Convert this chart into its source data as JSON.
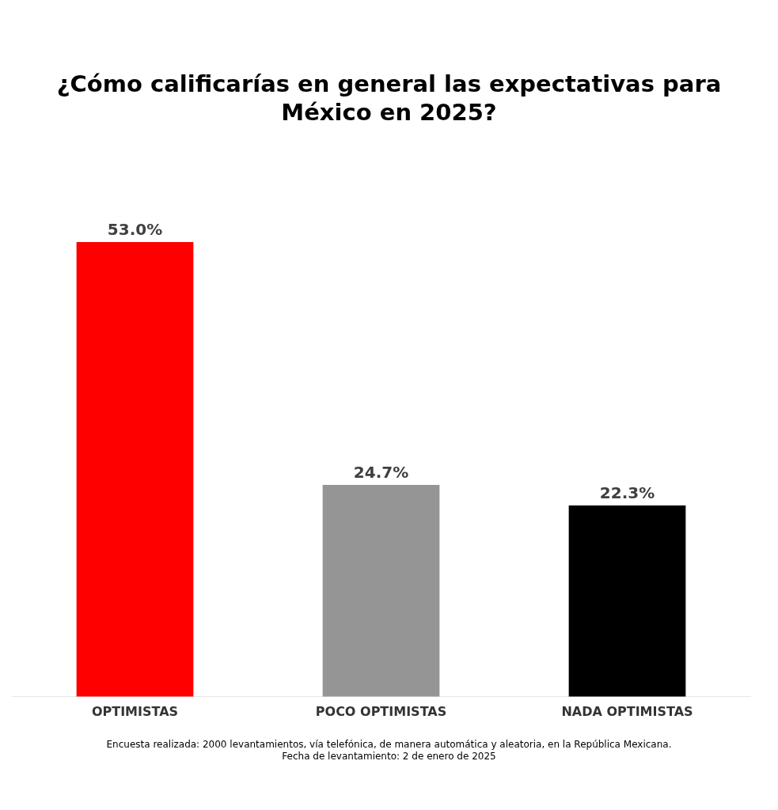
{
  "chart_data": {
    "type": "bar",
    "title": "¿Cómo calificarías en general las expectativas para México en 2025?",
    "categories": [
      "OPTIMISTAS",
      "POCO OPTIMISTAS",
      "NADA OPTIMISTAS"
    ],
    "values": [
      53.0,
      24.7,
      22.3
    ],
    "colors": [
      "#ff0000",
      "#959595",
      "#000000"
    ],
    "value_labels": [
      "53.0%",
      "24.7%",
      "22.3%"
    ],
    "grid": false,
    "legend": false,
    "annotations": [
      "Encuesta realizada: 2000 levantamientos, vía telefónica, de manera automática y aleatoria, en  la República Mexicana.",
      "Fecha de levantamiento: 2 de enero de 2025"
    ]
  }
}
